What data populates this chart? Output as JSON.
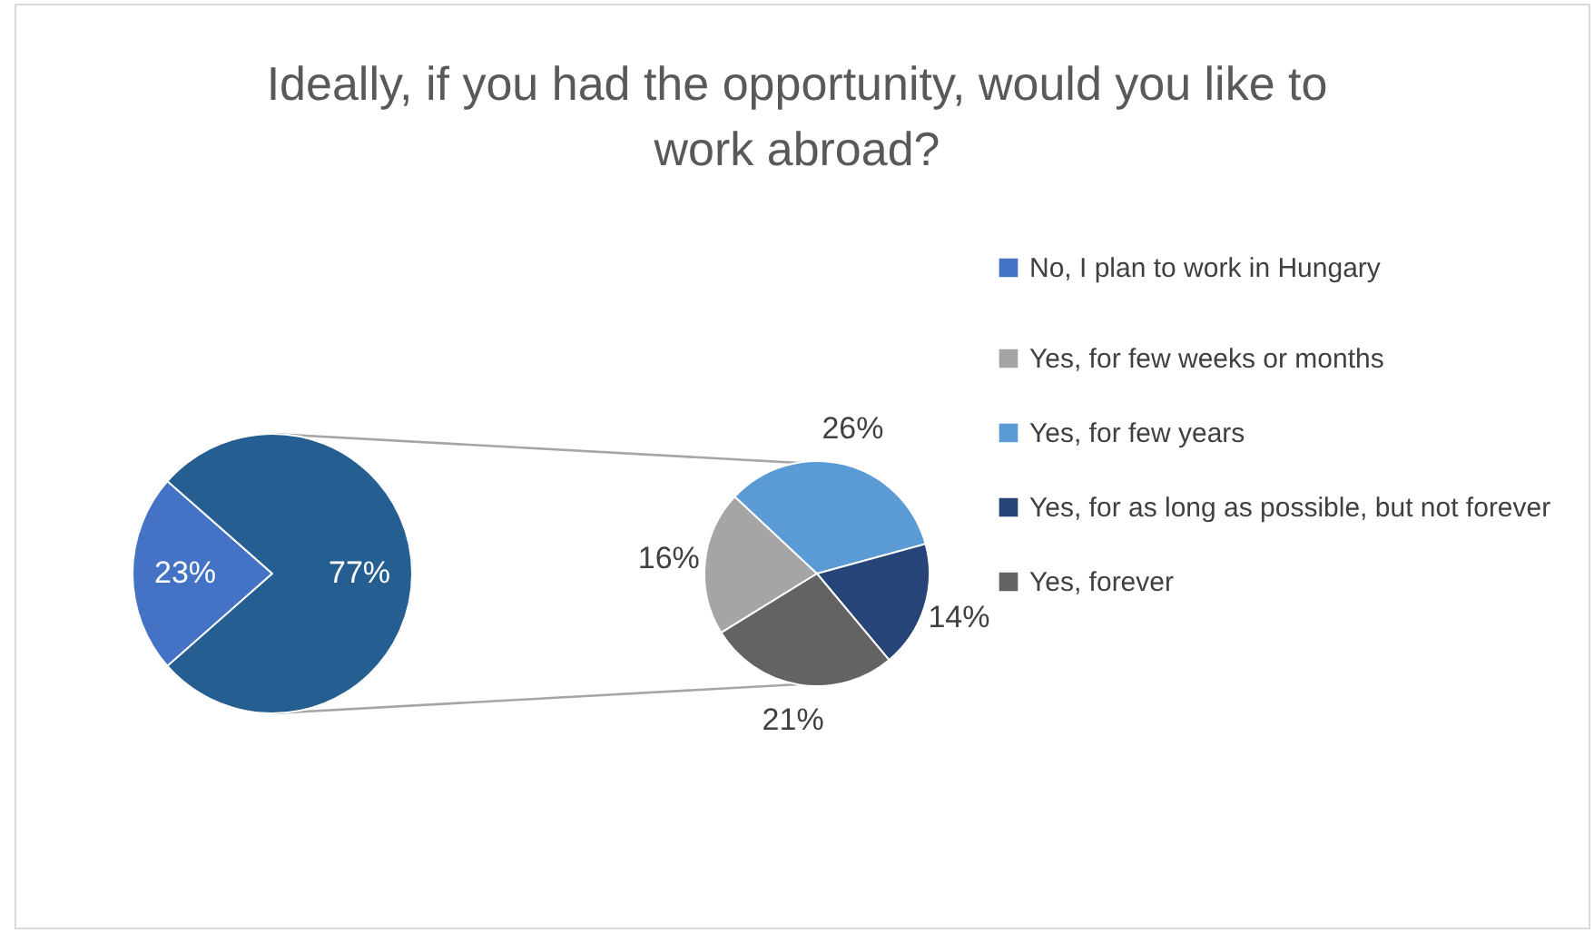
{
  "chart_data": [
    {
      "type": "pie",
      "title": "Ideally, if you had the opportunity, would you like to work abroad?",
      "categories": [
        "No, I plan to work in Hungary",
        null
      ],
      "values": [
        23,
        77
      ],
      "colors": [
        "#4472c4",
        "#255e91"
      ],
      "value_labels": [
        "23%",
        "77%"
      ],
      "legend": "right"
    },
    {
      "type": "pie",
      "categories": [
        "Yes, for few weeks or months",
        "Yes, for few years",
        "Yes, for as long as possible, but not forever",
        "Yes, forever"
      ],
      "values": [
        16,
        26,
        14,
        21
      ],
      "colors": [
        "#a5a5a5",
        "#5b9bd5",
        "#264478",
        "#636363"
      ],
      "value_labels": [
        "16%",
        "26%",
        "14%",
        "21%"
      ],
      "legend": "right"
    }
  ]
}
